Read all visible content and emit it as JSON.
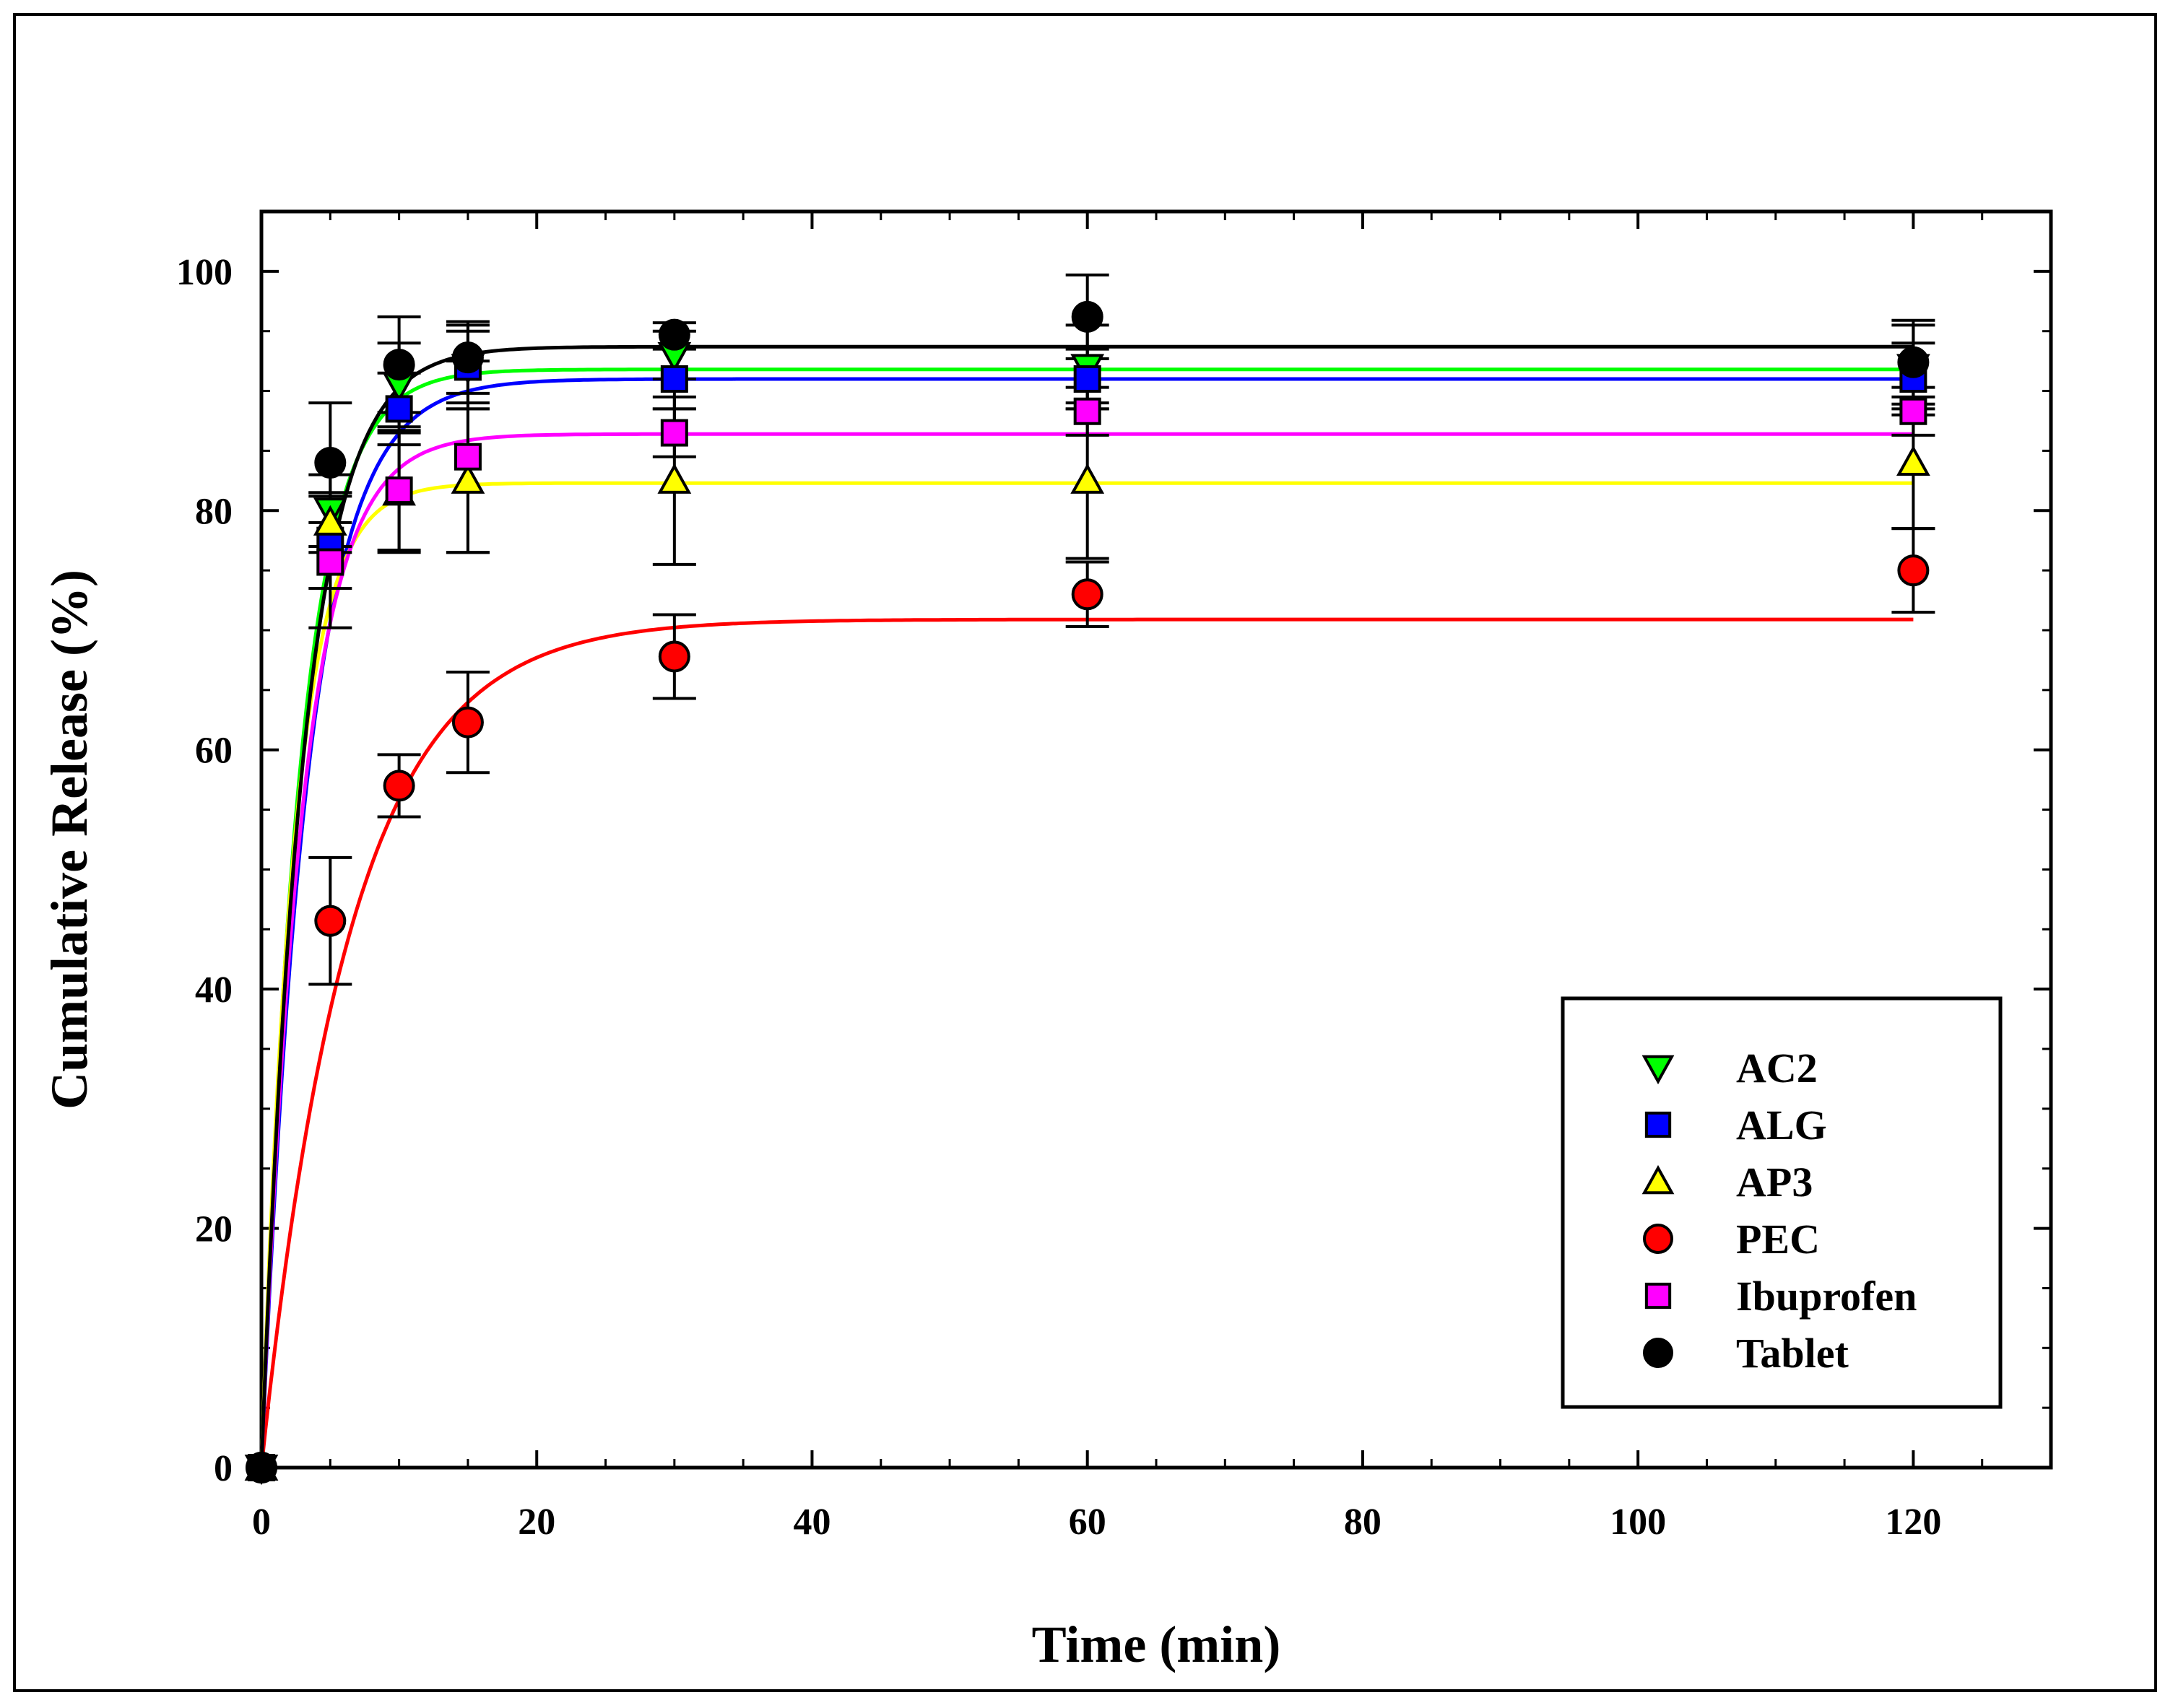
{
  "chart_data": {
    "type": "scatter",
    "title": "",
    "xlabel": "Time (min)",
    "ylabel": "Cumulative Release (%)",
    "xlim": [
      0,
      130
    ],
    "ylim": [
      0,
      105
    ],
    "xticks": [
      0,
      20,
      40,
      60,
      80,
      100,
      120
    ],
    "yticks": [
      0,
      20,
      40,
      60,
      80,
      100
    ],
    "x": [
      0,
      5,
      10,
      15,
      30,
      60,
      120
    ],
    "legend_position": "bottom-right",
    "series": [
      {
        "name": "AC2",
        "marker": "triangle-down",
        "color": "#00ff00",
        "values": [
          0,
          80.0,
          90.5,
          92.0,
          93.0,
          92.0,
          92.0
        ],
        "errors": [
          0,
          3.0,
          3.5,
          3.5,
          2.0,
          3.5,
          3.5
        ],
        "fit": {
          "plateau": 91.8,
          "k": 0.36
        }
      },
      {
        "name": "ALG",
        "marker": "square",
        "color": "#0000ff",
        "values": [
          0,
          77.5,
          88.5,
          92.0,
          91.0,
          91.0,
          91.0
        ],
        "errors": [
          0,
          4.0,
          3.0,
          3.0,
          2.5,
          2.5,
          3.0
        ],
        "fit": {
          "plateau": 91.0,
          "k": 0.3
        }
      },
      {
        "name": "AP3",
        "marker": "triangle-up",
        "color": "#ffff00",
        "values": [
          0,
          79.0,
          81.5,
          82.5,
          82.5,
          82.5,
          84.0
        ],
        "errors": [
          0,
          2.5,
          5.0,
          6.0,
          7.0,
          6.5,
          5.5
        ],
        "fit": {
          "plateau": 82.3,
          "k": 0.42
        }
      },
      {
        "name": "PEC",
        "marker": "circle",
        "color": "#ff0000",
        "values": [
          0,
          45.7,
          57.0,
          62.3,
          67.8,
          73.0,
          75.0
        ],
        "errors": [
          0,
          5.3,
          2.6,
          4.2,
          3.5,
          2.7,
          3.5
        ],
        "fit": {
          "plateau": 70.9,
          "k": 0.155
        }
      },
      {
        "name": "Ibuprofen",
        "marker": "square",
        "color": "#ff00ff",
        "values": [
          0,
          75.7,
          81.7,
          84.5,
          86.5,
          88.3,
          88.3
        ],
        "errors": [
          0,
          5.5,
          5.0,
          8.0,
          2.0,
          2.0,
          2.0
        ],
        "fit": {
          "plateau": 86.4,
          "k": 0.34
        }
      },
      {
        "name": "Tablet",
        "marker": "circle",
        "color": "#000000",
        "values": [
          0,
          84.0,
          92.2,
          92.8,
          94.7,
          96.2,
          92.4
        ],
        "errors": [
          0,
          5.0,
          4.0,
          3.0,
          1.0,
          3.5,
          3.5
        ],
        "fit": {
          "plateau": 93.7,
          "k": 0.33
        }
      }
    ]
  }
}
